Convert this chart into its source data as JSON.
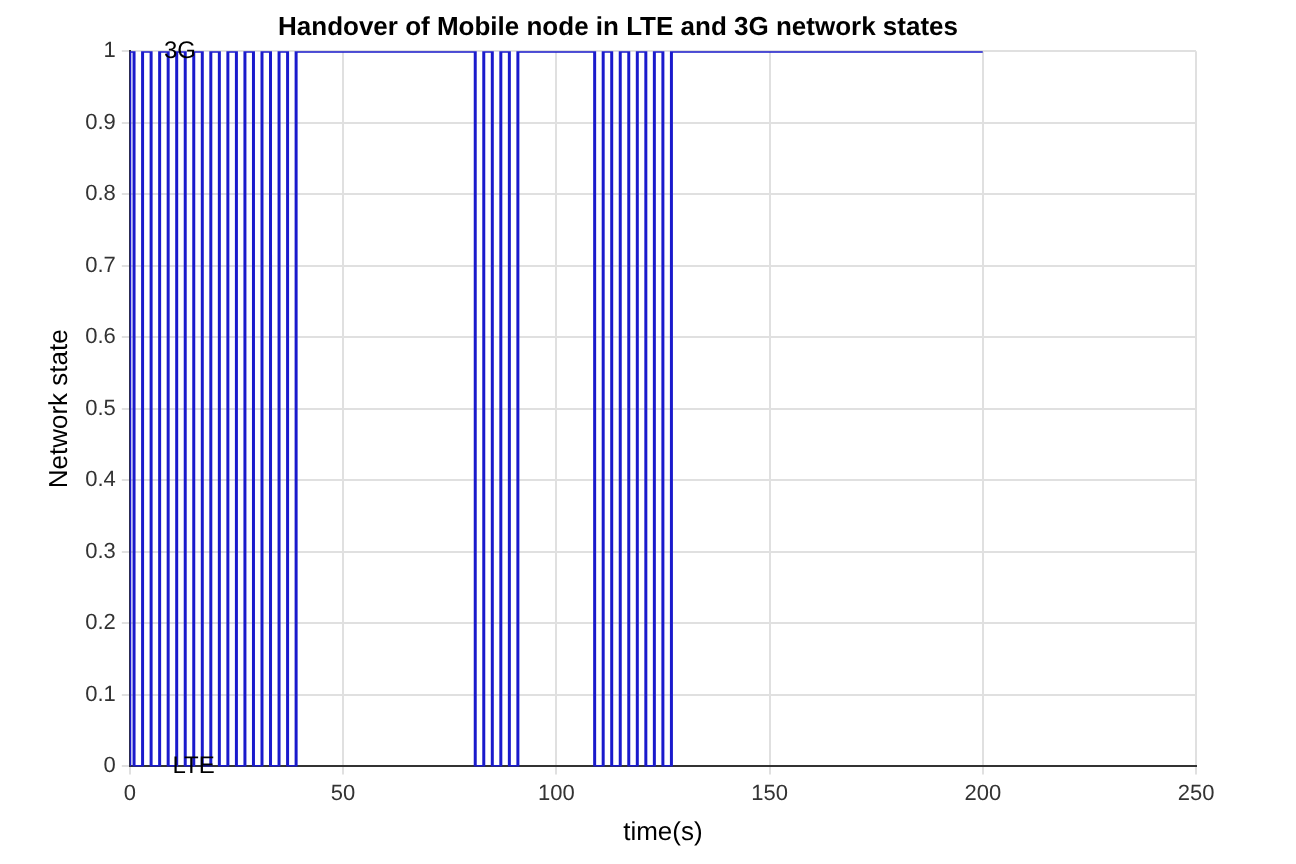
{
  "chart_data": {
    "type": "step",
    "title": "Handover of Mobile node in LTE and 3G network states",
    "xlabel": "time(s)",
    "ylabel": "Network state",
    "x": [
      0,
      1,
      3,
      5,
      7,
      9,
      11,
      13,
      15,
      17,
      19,
      21,
      23,
      25,
      27,
      29,
      31,
      33,
      35,
      37,
      39,
      81,
      83,
      85,
      87,
      89,
      91,
      109,
      111,
      113,
      115,
      117,
      119,
      121,
      123,
      125,
      127,
      173,
      200
    ],
    "series": [
      {
        "color": "#1a1acc",
        "values": [
          0,
          1,
          0,
          1,
          0,
          1,
          0,
          1,
          0,
          1,
          0,
          1,
          0,
          1,
          0,
          1,
          0,
          1,
          0,
          1,
          0,
          1,
          0,
          1,
          0,
          1,
          0,
          1,
          0,
          1,
          0,
          1,
          0,
          1,
          0,
          1,
          0,
          1,
          1
        ]
      }
    ],
    "xlim": [
      0,
      250
    ],
    "xticks": [
      0,
      50,
      100,
      150,
      200,
      250
    ],
    "ylim": [
      0,
      1
    ],
    "yticks": [
      0,
      0.1,
      0.2,
      0.3,
      0.4,
      0.5,
      0.6,
      0.7,
      0.8,
      0.9,
      1
    ],
    "annotations": [
      {
        "text": "3G",
        "x": 8,
        "y": 1
      },
      {
        "text": "LTE",
        "x": 10,
        "y": 0
      }
    ],
    "grid": true,
    "legend": false,
    "marker": "none",
    "line_style": "solid"
  }
}
